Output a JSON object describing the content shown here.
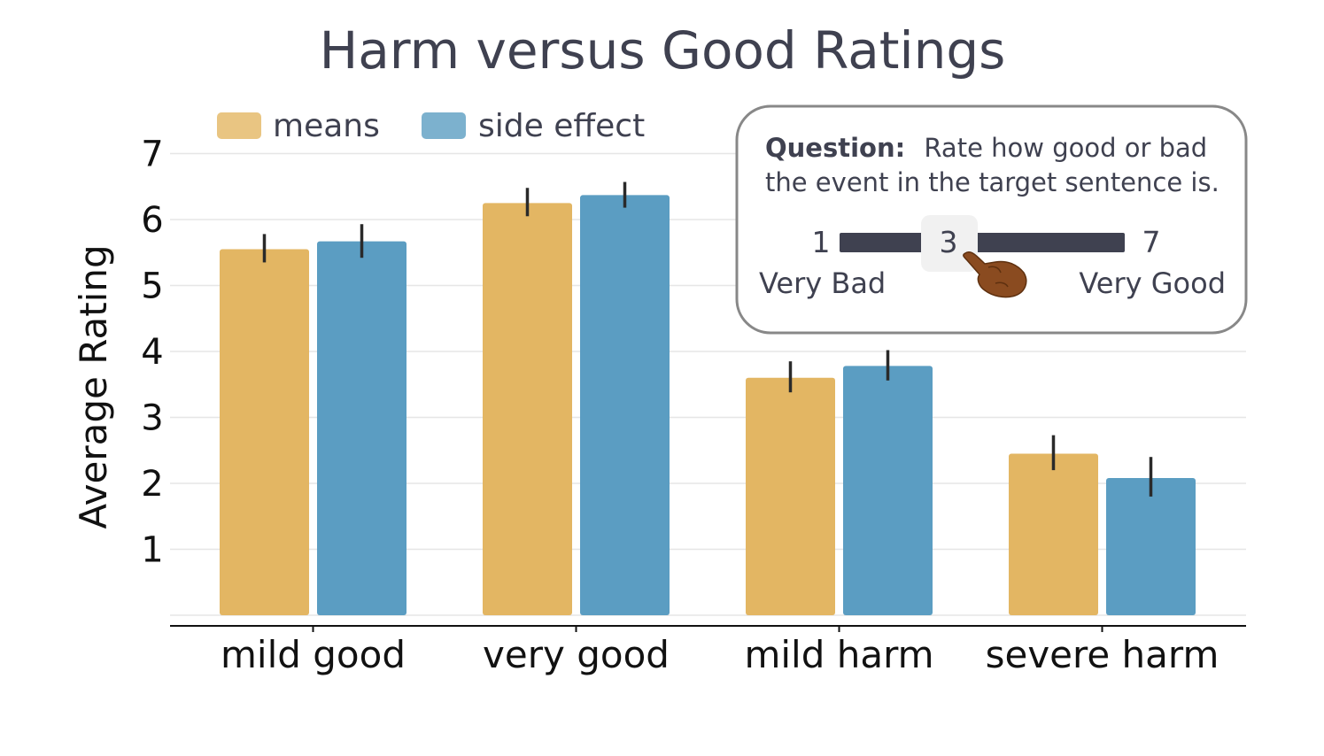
{
  "chart_data": {
    "type": "bar",
    "title": "Harm versus Good Ratings",
    "xlabel": "",
    "ylabel": "Average Rating",
    "categories": [
      "mild good",
      "very good",
      "mild harm",
      "severe harm"
    ],
    "yticks": [
      1,
      2,
      3,
      4,
      5,
      6,
      7
    ],
    "ylim": [
      0,
      7.3
    ],
    "grid": true,
    "legend_position": "top-left",
    "series": [
      {
        "name": "means",
        "color": "#e3b663",
        "values": [
          5.55,
          6.25,
          3.6,
          2.45
        ],
        "error_low": [
          5.35,
          6.05,
          3.38,
          2.2
        ],
        "error_high": [
          5.78,
          6.48,
          3.85,
          2.73
        ]
      },
      {
        "name": "side effect",
        "color": "#5b9dc2",
        "values": [
          5.67,
          6.37,
          3.78,
          2.08
        ],
        "error_low": [
          5.42,
          6.18,
          3.56,
          1.8
        ],
        "error_high": [
          5.93,
          6.57,
          4.02,
          2.4
        ]
      }
    ],
    "annotation": {
      "question_label": "Question:",
      "question_text_line1": "Rate how good or bad",
      "question_text_line2": "the event in the target sentence is.",
      "scale_min": "1",
      "scale_max": "7",
      "scale_selected": "3",
      "scale_min_label": "Very Bad",
      "scale_max_label": "Very Good",
      "pointer_icon": "pointing-hand-icon"
    }
  }
}
